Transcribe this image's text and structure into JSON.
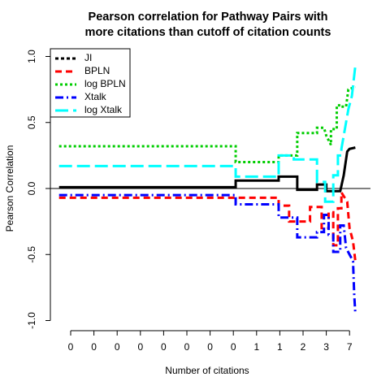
{
  "chart_data": {
    "type": "line",
    "title": [
      "Pearson correlation for Pathway Pairs with",
      "more citations than cutoff of citation counts"
    ],
    "xlabel": "Number of citations",
    "ylabel": "Pearson Correlation",
    "xlim": [
      -0.9,
      12.9
    ],
    "ylim": [
      -1.08,
      1.08
    ],
    "xticks": [
      {
        "value": 0,
        "label": "0"
      },
      {
        "value": 1,
        "label": "0"
      },
      {
        "value": 2,
        "label": "0"
      },
      {
        "value": 3,
        "label": "0"
      },
      {
        "value": 4,
        "label": "0"
      },
      {
        "value": 5,
        "label": "0"
      },
      {
        "value": 6,
        "label": "0"
      },
      {
        "value": 7,
        "label": "0"
      },
      {
        "value": 8,
        "label": "1"
      },
      {
        "value": 9,
        "label": "1"
      },
      {
        "value": 10,
        "label": "2"
      },
      {
        "value": 11,
        "label": "3"
      },
      {
        "value": 12,
        "label": "7"
      }
    ],
    "yticks": [
      {
        "value": -1,
        "label": "-1.0"
      },
      -0.5,
      {
        "value": 0,
        "label": "0.0"
      },
      0.5,
      {
        "value": 1,
        "label": "1.0"
      }
    ],
    "hline": 0,
    "legend": "top-left",
    "series": [
      {
        "name": "JI",
        "color": "#000000",
        "dash": "none",
        "x": [
          -0.5,
          7.1,
          7.1,
          8.95,
          8.95,
          9.75,
          9.75,
          10.6,
          10.6,
          11.0,
          11.0,
          11.6,
          11.75,
          11.9,
          12.0,
          12.25
        ],
        "values": [
          0.01,
          0.01,
          0.06,
          0.06,
          0.09,
          0.09,
          -0.01,
          -0.01,
          0.03,
          0.03,
          -0.02,
          -0.02,
          0.1,
          0.28,
          0.3,
          0.31
        ]
      },
      {
        "name": "BPLN",
        "color": "#ff0000",
        "dash": "8 5",
        "x": [
          -0.5,
          8.95,
          8.95,
          9.4,
          9.4,
          10.3,
          10.3,
          10.8,
          10.8,
          11.1,
          11.1,
          11.3,
          11.3,
          11.5,
          11.5,
          11.65,
          11.65,
          11.9,
          12.0,
          12.15,
          12.25
        ],
        "values": [
          -0.07,
          -0.07,
          -0.13,
          -0.13,
          -0.25,
          -0.25,
          -0.14,
          -0.14,
          -0.3,
          -0.3,
          -0.18,
          -0.18,
          -0.43,
          -0.43,
          -0.15,
          -0.15,
          -0.03,
          -0.1,
          -0.3,
          -0.4,
          -0.55
        ]
      },
      {
        "name": "log BPLN",
        "color": "#00cd00",
        "dash": "3 3",
        "x": [
          -0.5,
          7.1,
          7.1,
          8.95,
          8.95,
          9.75,
          9.75,
          10.6,
          10.6,
          10.9,
          11.0,
          11.2,
          11.2,
          11.45,
          11.45,
          11.65,
          11.65,
          11.85,
          11.95,
          12.25
        ],
        "values": [
          0.32,
          0.32,
          0.2,
          0.2,
          0.25,
          0.25,
          0.42,
          0.42,
          0.46,
          0.46,
          0.4,
          0.33,
          0.45,
          0.45,
          0.63,
          0.63,
          0.62,
          0.62,
          0.75,
          0.77
        ]
      },
      {
        "name": "Xtalk",
        "color": "#0000ff",
        "dash": "10 4 2 4",
        "x": [
          -0.5,
          7.1,
          7.1,
          8.95,
          8.95,
          9.75,
          9.75,
          10.6,
          10.6,
          10.9,
          10.9,
          11.1,
          11.1,
          11.3,
          11.3,
          11.6,
          11.6,
          11.75,
          11.85,
          12.0,
          12.15,
          12.2,
          12.25
        ],
        "values": [
          -0.05,
          -0.05,
          -0.12,
          -0.12,
          -0.22,
          -0.22,
          -0.37,
          -0.37,
          -0.33,
          -0.33,
          -0.2,
          -0.2,
          -0.35,
          -0.35,
          -0.48,
          -0.48,
          -0.28,
          -0.28,
          -0.45,
          -0.5,
          -0.55,
          -0.8,
          -0.95
        ]
      },
      {
        "name": "log Xtalk",
        "color": "#00ffff",
        "dash": "16 6",
        "x": [
          -0.5,
          7.1,
          7.1,
          8.95,
          8.95,
          9.6,
          9.6,
          10.6,
          10.6,
          10.95,
          10.95,
          11.3,
          11.3,
          11.5,
          11.5,
          11.65,
          11.65,
          11.85,
          11.95,
          12.1,
          12.25
        ],
        "values": [
          0.17,
          0.17,
          0.09,
          0.09,
          0.25,
          0.25,
          0.22,
          0.22,
          0.05,
          0.05,
          -0.1,
          -0.1,
          0.1,
          0.1,
          0.25,
          0.25,
          0.3,
          0.5,
          0.6,
          0.7,
          0.93
        ]
      }
    ]
  }
}
